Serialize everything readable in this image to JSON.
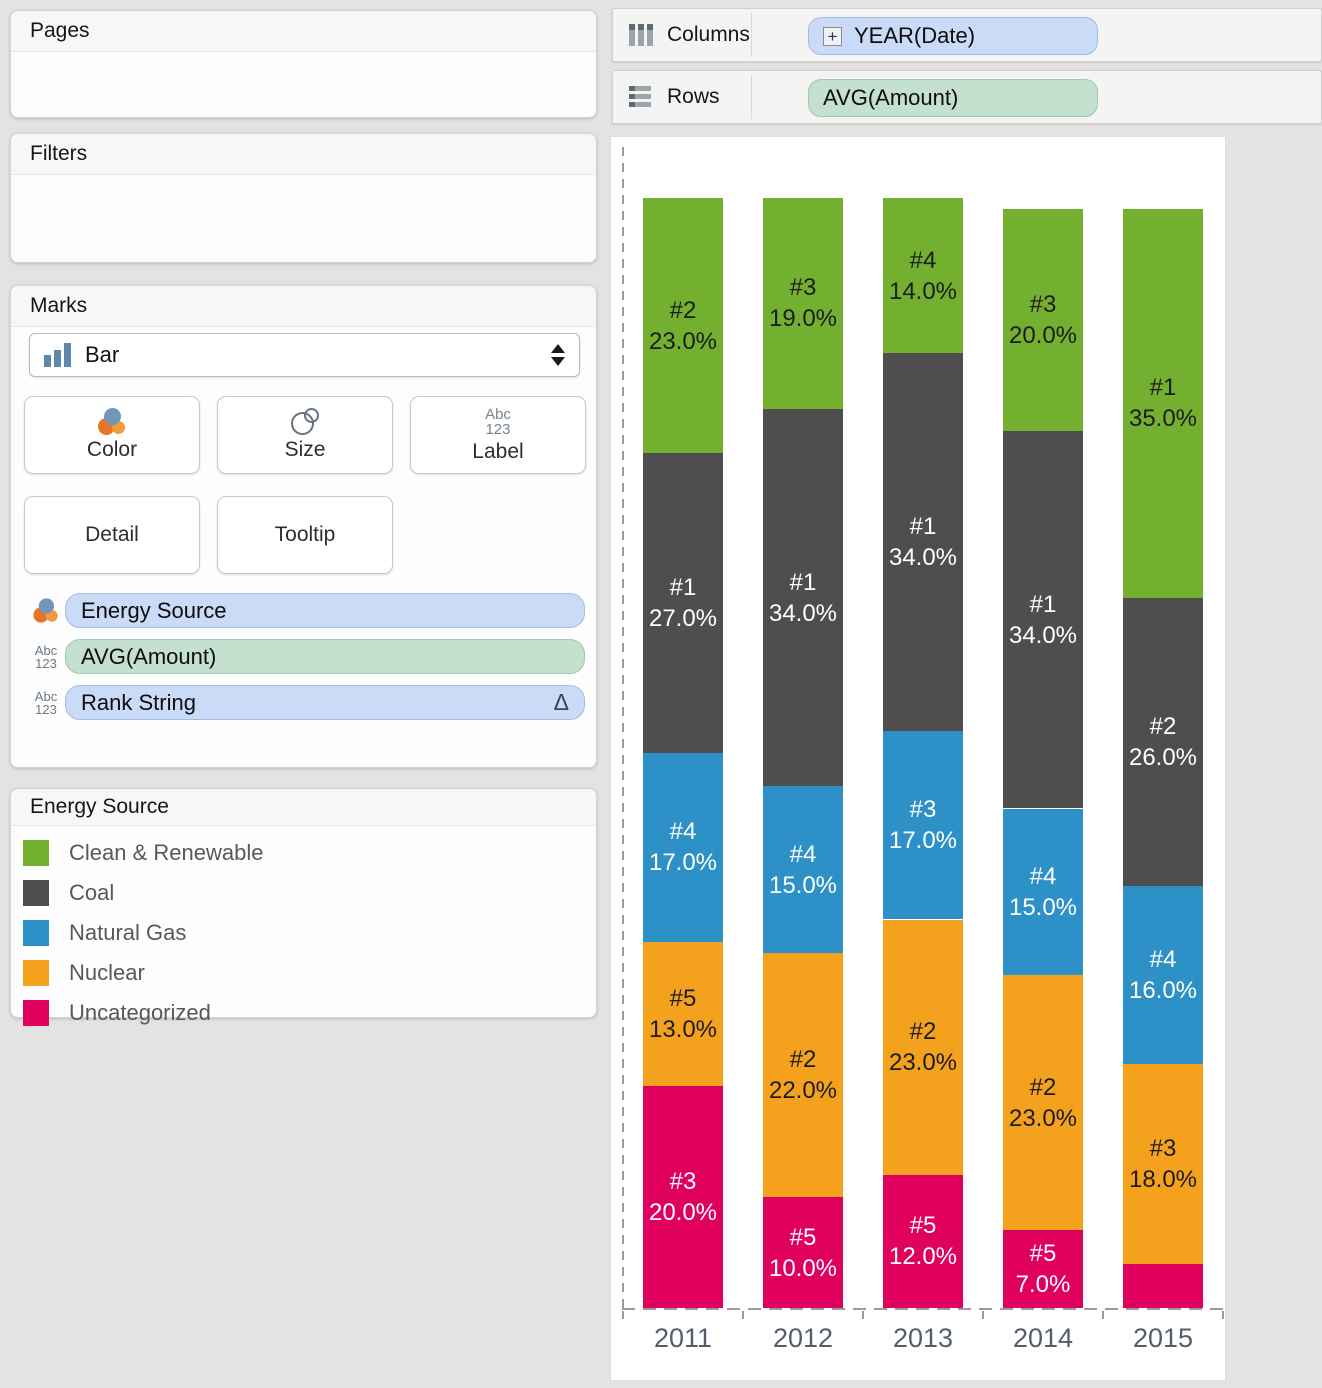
{
  "pages_card": {
    "title": "Pages"
  },
  "filters_card": {
    "title": "Filters"
  },
  "marks_card": {
    "title": "Marks",
    "mark_type": "Bar",
    "mark_type_icon": "bar-chart-icon",
    "buttons": {
      "color": "Color",
      "size": "Size",
      "label": "Label",
      "detail": "Detail",
      "tooltip": "Tooltip"
    },
    "button_icons": {
      "color": "color-circles-icon",
      "size": "size-circles-icon",
      "label": "abc123-icon"
    },
    "abc": "Abc",
    "num": "123",
    "pills": [
      {
        "text": "Energy Source",
        "style": "blue",
        "icon": "color-circles-icon",
        "suffix": ""
      },
      {
        "text": "AVG(Amount)",
        "style": "green",
        "icon": "abc123-icon",
        "suffix": ""
      },
      {
        "text": "Rank String",
        "style": "blue",
        "icon": "abc123-icon",
        "suffix": "Δ"
      }
    ]
  },
  "legend": {
    "title": "Energy Source",
    "items": [
      {
        "label": "Clean & Renewable",
        "color": "#74b02f"
      },
      {
        "label": "Coal",
        "color": "#4e4e4e"
      },
      {
        "label": "Natural Gas",
        "color": "#2d90c7"
      },
      {
        "label": "Nuclear",
        "color": "#f4a21e"
      },
      {
        "label": "Uncategorized",
        "color": "#e0005e"
      }
    ]
  },
  "shelves": {
    "columns": {
      "label": "Columns",
      "icon": "columns-icon",
      "pill": "YEAR(Date)",
      "pill_icon": "expand-icon",
      "pill_style": "blue"
    },
    "rows": {
      "label": "Rows",
      "icon": "rows-icon",
      "pill": "AVG(Amount)",
      "pill_style": "green"
    }
  },
  "chart_data": {
    "type": "bar",
    "subtype": "stacked-percent",
    "x": [
      "2011",
      "2012",
      "2013",
      "2014",
      "2015"
    ],
    "xlabel": "",
    "ylabel": "AVG(Amount)",
    "unit": "%",
    "grid": false,
    "legend_position": "left-panel",
    "stack_order_top_to_bottom": [
      "Clean & Renewable",
      "Coal",
      "Natural Gas",
      "Nuclear",
      "Uncategorized"
    ],
    "series": [
      {
        "name": "Clean & Renewable",
        "color": "#74b02f",
        "label_color": "#1c1c1c",
        "values": [
          23,
          19,
          14,
          20,
          35
        ],
        "ranks": [
          "#2",
          "#3",
          "#4",
          "#3",
          "#1"
        ]
      },
      {
        "name": "Coal",
        "color": "#4e4e4e",
        "label_color": "#ffffff",
        "values": [
          27,
          34,
          34,
          34,
          26
        ],
        "ranks": [
          "#1",
          "#1",
          "#1",
          "#1",
          "#2"
        ]
      },
      {
        "name": "Natural Gas",
        "color": "#2d90c7",
        "label_color": "#ffffff",
        "values": [
          17,
          15,
          17,
          15,
          16
        ],
        "ranks": [
          "#4",
          "#4",
          "#3",
          "#4",
          "#4"
        ]
      },
      {
        "name": "Nuclear",
        "color": "#f4a21e",
        "label_color": "#1c1c1c",
        "values": [
          13,
          22,
          23,
          23,
          18
        ],
        "ranks": [
          "#5",
          "#2",
          "#2",
          "#2",
          "#3"
        ]
      },
      {
        "name": "Uncategorized",
        "color": "#e0005e",
        "label_color": "#ffffff",
        "values": [
          20,
          10,
          12,
          7,
          4
        ],
        "ranks": [
          "#3",
          "#5",
          "#5",
          "#5",
          ""
        ]
      }
    ]
  }
}
